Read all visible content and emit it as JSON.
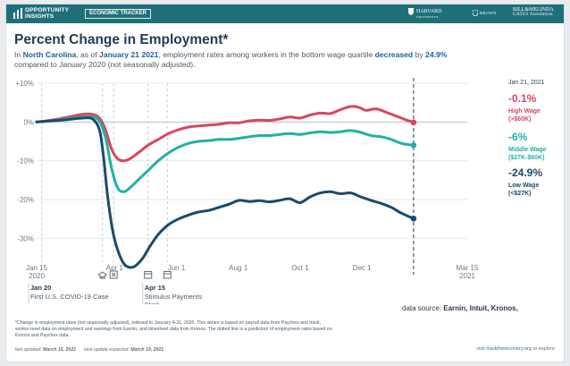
{
  "header": {
    "brand_line1": "OPPORTUNITY",
    "brand_line2": "INSIGHTS",
    "tracker_label": "ECONOMIC TRACKER",
    "partners": [
      {
        "name": "HARVARD",
        "sub": "UNIVERSITY"
      },
      {
        "name": "BROWN",
        "sub": ""
      },
      {
        "name": "BILL&MELINDA",
        "sub": "GATES foundation"
      }
    ]
  },
  "title": "Percent Change in Employment*",
  "subtitle": {
    "prefix": "In ",
    "state": "North Carolina",
    "mid1": ", as of ",
    "date": "January 21 2021",
    "mid2": ", employment rates among workers in the bottom wage quartile ",
    "direction": "decreased",
    "mid3": " by ",
    "amount": "24.9%",
    "suffix": "compared to January 2020 (not seasonally adjusted)."
  },
  "chart_data": {
    "type": "line",
    "date_label": "Jan 21, 2021",
    "y_ticks": [
      "+10%",
      "0%",
      "-10%",
      "-20%",
      "-30%"
    ],
    "ylim": [
      -38,
      10
    ],
    "x_ticks": [
      {
        "label": "Jan 15",
        "sub": "2020",
        "day": 0
      },
      {
        "label": "Apr 1",
        "sub": "",
        "day": 77
      },
      {
        "label": "Jun 1",
        "sub": "",
        "day": 138
      },
      {
        "label": "Aug 1",
        "sub": "",
        "day": 199
      },
      {
        "label": "Oct 1",
        "sub": "",
        "day": 260
      },
      {
        "label": "Dec 1",
        "sub": "",
        "day": 321
      },
      {
        "label": "Mar 15",
        "sub": "2021",
        "day": 425
      }
    ],
    "xlim": [
      0,
      425
    ],
    "current_day": 372,
    "events": [
      {
        "day": 5,
        "icon": "",
        "label": "",
        "desc": ""
      },
      {
        "day": 65,
        "icon": "school-icon",
        "label": "Jan 20",
        "desc": "First U.S. COVID-19 Case"
      },
      {
        "day": 76,
        "icon": "closure-icon",
        "label": "",
        "desc": ""
      },
      {
        "day": 110,
        "icon": "calendar-icon",
        "label": "Apr 15",
        "desc": "Stimulus Payments Start"
      },
      {
        "day": 129,
        "icon": "calendar-icon",
        "label": "",
        "desc": ""
      }
    ],
    "series": [
      {
        "name": "High Wage",
        "range": "(>$60K)",
        "value_label": "-0.1%",
        "color": "#d9455f",
        "points": [
          [
            0,
            0
          ],
          [
            15,
            0.5
          ],
          [
            30,
            1.2
          ],
          [
            45,
            2.0
          ],
          [
            55,
            2.0
          ],
          [
            62,
            1.0
          ],
          [
            68,
            -2
          ],
          [
            74,
            -7
          ],
          [
            80,
            -9.5
          ],
          [
            86,
            -10
          ],
          [
            92,
            -9.5
          ],
          [
            100,
            -8
          ],
          [
            110,
            -6
          ],
          [
            120,
            -4.5
          ],
          [
            130,
            -3
          ],
          [
            140,
            -2
          ],
          [
            150,
            -1.3
          ],
          [
            160,
            -1.0
          ],
          [
            170,
            -0.8
          ],
          [
            180,
            -0.6
          ],
          [
            190,
            -0.2
          ],
          [
            200,
            -0.2
          ],
          [
            210,
            0.3
          ],
          [
            220,
            0.5
          ],
          [
            230,
            0.4
          ],
          [
            240,
            0.8
          ],
          [
            250,
            1.3
          ],
          [
            260,
            1.0
          ],
          [
            270,
            1.8
          ],
          [
            280,
            2.3
          ],
          [
            290,
            2.2
          ],
          [
            300,
            3.2
          ],
          [
            310,
            4.0
          ],
          [
            318,
            3.8
          ],
          [
            325,
            3.0
          ],
          [
            335,
            3.4
          ],
          [
            345,
            2.5
          ],
          [
            355,
            1.5
          ],
          [
            365,
            0.5
          ],
          [
            372,
            -0.1
          ]
        ]
      },
      {
        "name": "Middle Wage",
        "range": "($27K-$60K)",
        "value_label": "-6%",
        "color": "#23b0a4",
        "points": [
          [
            0,
            0
          ],
          [
            15,
            0.3
          ],
          [
            30,
            0.8
          ],
          [
            45,
            1.3
          ],
          [
            55,
            1.3
          ],
          [
            62,
            0.2
          ],
          [
            68,
            -4
          ],
          [
            74,
            -12
          ],
          [
            80,
            -17
          ],
          [
            86,
            -18
          ],
          [
            92,
            -17
          ],
          [
            100,
            -15
          ],
          [
            110,
            -12.5
          ],
          [
            120,
            -10
          ],
          [
            130,
            -8
          ],
          [
            140,
            -6.5
          ],
          [
            150,
            -5.5
          ],
          [
            160,
            -5
          ],
          [
            170,
            -4.8
          ],
          [
            180,
            -4.5
          ],
          [
            190,
            -4.5
          ],
          [
            200,
            -4.2
          ],
          [
            210,
            -3.8
          ],
          [
            220,
            -3.5
          ],
          [
            230,
            -3.5
          ],
          [
            240,
            -3.2
          ],
          [
            250,
            -3.0
          ],
          [
            260,
            -3.2
          ],
          [
            270,
            -2.8
          ],
          [
            280,
            -2.5
          ],
          [
            290,
            -2.7
          ],
          [
            300,
            -2.5
          ],
          [
            310,
            -2.2
          ],
          [
            320,
            -2.7
          ],
          [
            330,
            -3.5
          ],
          [
            340,
            -3.8
          ],
          [
            350,
            -4.5
          ],
          [
            360,
            -5.5
          ],
          [
            372,
            -6
          ]
        ]
      },
      {
        "name": "Low Wage",
        "range": "(<$27K)",
        "value_label": "-24.9%",
        "color": "#1a4b6d",
        "points": [
          [
            0,
            0
          ],
          [
            15,
            0.3
          ],
          [
            30,
            0.6
          ],
          [
            45,
            1.0
          ],
          [
            55,
            0.8
          ],
          [
            62,
            -2
          ],
          [
            66,
            -9
          ],
          [
            70,
            -19
          ],
          [
            75,
            -28
          ],
          [
            80,
            -33
          ],
          [
            86,
            -36.5
          ],
          [
            92,
            -37.5
          ],
          [
            98,
            -37
          ],
          [
            105,
            -35
          ],
          [
            112,
            -32
          ],
          [
            120,
            -29
          ],
          [
            130,
            -26.5
          ],
          [
            140,
            -25
          ],
          [
            150,
            -24
          ],
          [
            160,
            -23.2
          ],
          [
            170,
            -22.8
          ],
          [
            180,
            -22
          ],
          [
            190,
            -21.2
          ],
          [
            200,
            -20.2
          ],
          [
            210,
            -20.5
          ],
          [
            220,
            -20.3
          ],
          [
            230,
            -20.6
          ],
          [
            240,
            -20.2
          ],
          [
            250,
            -19.8
          ],
          [
            260,
            -20.8
          ],
          [
            270,
            -19.3
          ],
          [
            280,
            -18.3
          ],
          [
            290,
            -18
          ],
          [
            300,
            -18.5
          ],
          [
            310,
            -18.3
          ],
          [
            320,
            -19.3
          ],
          [
            330,
            -20.2
          ],
          [
            340,
            -21
          ],
          [
            350,
            -22
          ],
          [
            360,
            -23.5
          ],
          [
            372,
            -24.9
          ]
        ]
      }
    ]
  },
  "source": {
    "prefix": "data source: ",
    "list": "Earnin, Intuit, Kronos,"
  },
  "footnote": "*Change in employment rates (not seasonally adjusted), indexed to January 4-31, 2020. This series is based on payroll data from Paychex and Intuit, worker-level data on employment and earnings from Earnin, and timesheet data from Kronos. The dotted line is a prediction of employment rates based on Kronos and Paychex data.",
  "updated": {
    "last_label": "last updated:",
    "last_date": "March 15, 2021",
    "next_label": "next update expected:",
    "next_date": "March 19, 2021"
  },
  "visit": {
    "prefix": "visit ",
    "link": "tracktherecovery.org",
    "suffix": " to explore"
  }
}
